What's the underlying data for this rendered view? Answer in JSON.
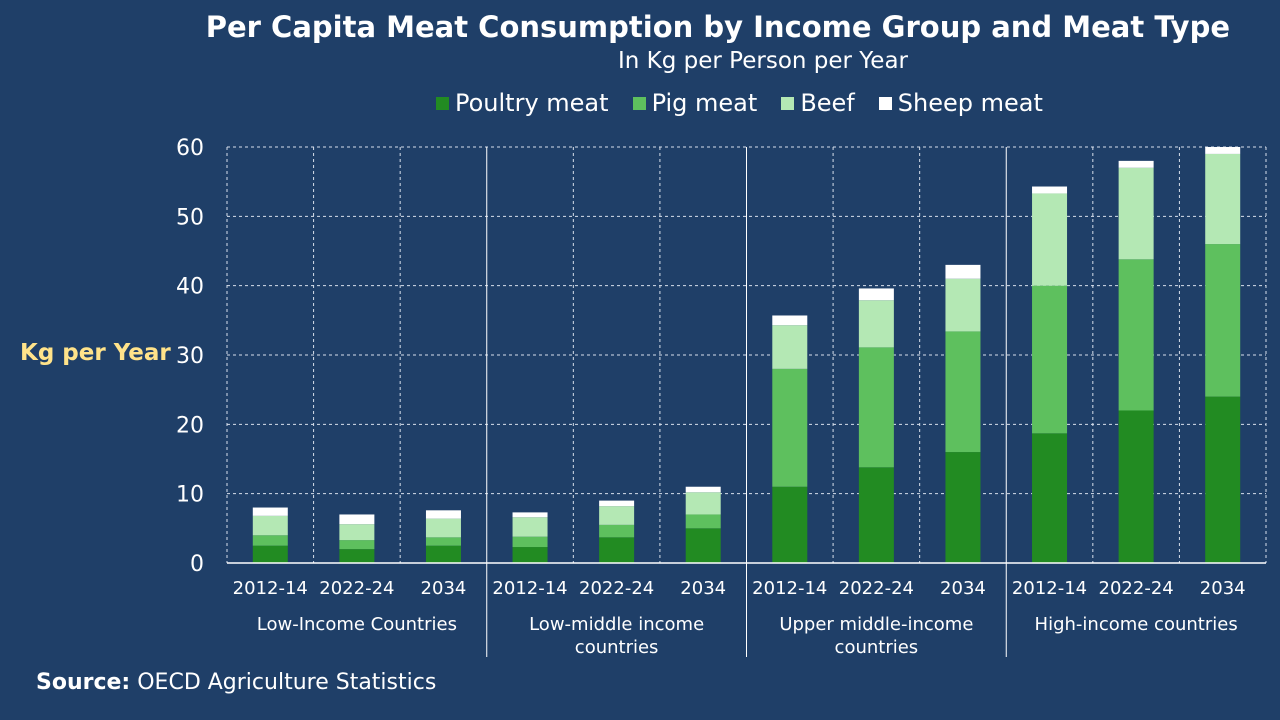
{
  "chart_data": {
    "type": "bar",
    "stacked": true,
    "title": "Per Capita Meat Consumption by Income Group and Meat Type",
    "subtitle": "In Kg per Person per Year",
    "ylabel": "Kg per Year",
    "ylim": [
      0,
      60
    ],
    "yticks": [
      0,
      10,
      20,
      30,
      40,
      50,
      60
    ],
    "grid": true,
    "legend_position": "top",
    "groups": [
      {
        "label": "Low-Income Countries",
        "categories": [
          "2012-14",
          "2022-24",
          "2034"
        ]
      },
      {
        "label": "Low-middle income countries",
        "categories": [
          "2012-14",
          "2022-24",
          "2034"
        ]
      },
      {
        "label": "Upper middle-income countries",
        "categories": [
          "2012-14",
          "2022-24",
          "2034"
        ]
      },
      {
        "label": "High-income countries",
        "categories": [
          "2012-14",
          "2022-24",
          "2034"
        ]
      }
    ],
    "series": [
      {
        "name": "Poultry meat",
        "color": "#228b22",
        "values": [
          2.5,
          2.0,
          2.5,
          2.3,
          3.7,
          5.0,
          11.0,
          13.8,
          16.0,
          18.7,
          22.0,
          24.0
        ]
      },
      {
        "name": "Pig meat",
        "color": "#5ec05e",
        "values": [
          1.5,
          1.3,
          1.2,
          1.5,
          1.8,
          2.0,
          17.0,
          17.3,
          17.4,
          21.3,
          21.8,
          22.0
        ]
      },
      {
        "name": "Beef",
        "color": "#b4e8b4",
        "values": [
          2.8,
          2.3,
          2.7,
          2.8,
          2.7,
          3.2,
          6.3,
          6.8,
          7.6,
          13.3,
          13.2,
          13.0
        ]
      },
      {
        "name": "Sheep meat",
        "color": "#ffffff",
        "values": [
          1.2,
          1.4,
          1.2,
          0.7,
          0.8,
          0.8,
          1.4,
          1.7,
          2.0,
          1.0,
          1.0,
          1.0
        ]
      }
    ]
  },
  "source": {
    "label": "Source:",
    "text": "OECD Agriculture Statistics"
  }
}
